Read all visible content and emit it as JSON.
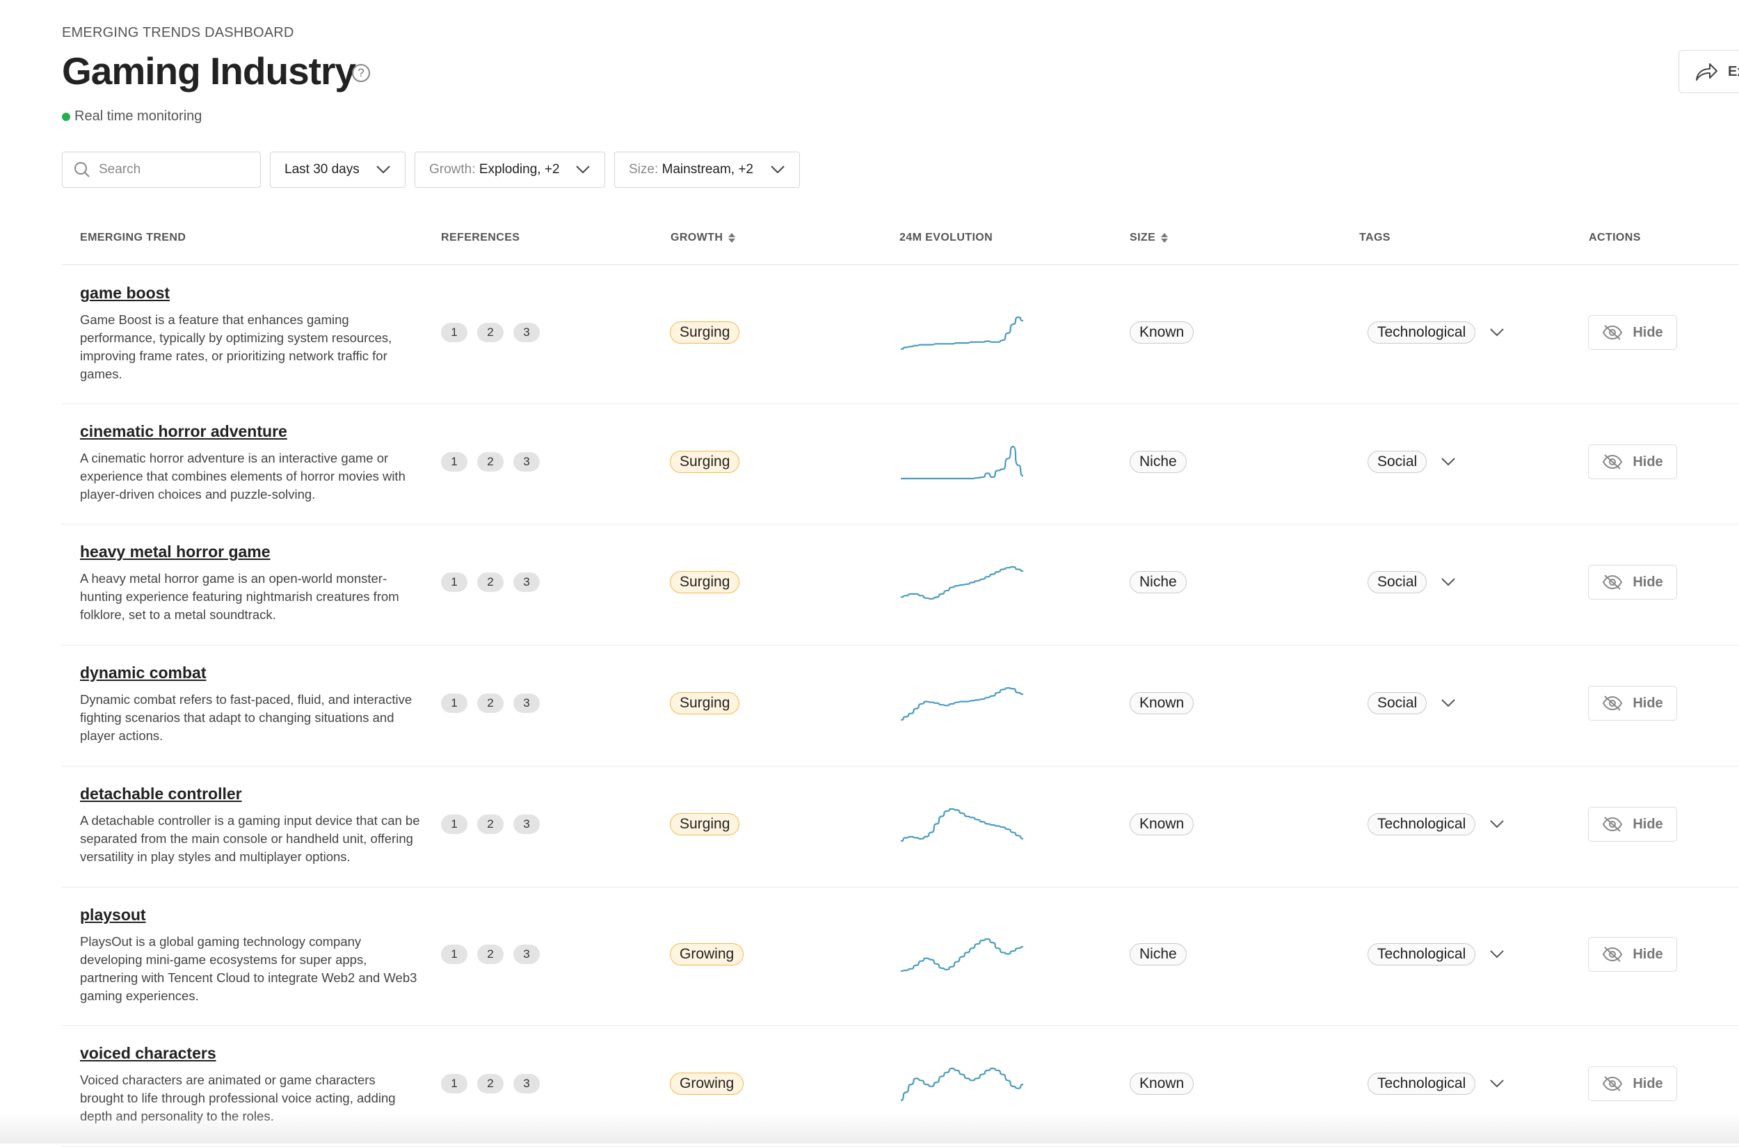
{
  "header": {
    "eyebrow": "EMERGING TRENDS DASHBOARD",
    "title": "Gaming Industry",
    "help_symbol": "?",
    "status": "Real time monitoring",
    "export_label": "Ex"
  },
  "filters": {
    "search_placeholder": "Search",
    "period": "Last 30 days",
    "growth_label": "Growth:",
    "growth_value": "Exploding, +2",
    "size_label": "Size:",
    "size_value": "Mainstream, +2"
  },
  "columns": {
    "trend": "EMERGING TREND",
    "references": "REFERENCES",
    "growth": "GROWTH",
    "evolution": "24M EVOLUTION",
    "size": "SIZE",
    "tags": "TAGS",
    "actions": "ACTIONS"
  },
  "colors": {
    "accent_line": "#4a9cc0",
    "live_dot": "#22b14c",
    "growth_border": "#f3b94a",
    "growth_fill": "#fff4e0"
  },
  "hide_label": "Hide",
  "rows": [
    {
      "name": "game boost",
      "description": "Game Boost is a feature that enhances gaming performance, typically by optimizing system resources, improving frame rates, or prioritizing network traffic for games.",
      "refs": [
        "1",
        "2",
        "3"
      ],
      "growth": "Surging",
      "size": "Known",
      "tag": "Technological",
      "trend": [
        20,
        22,
        23,
        24,
        25,
        25,
        25,
        26,
        26,
        26,
        26,
        27,
        27,
        27,
        28,
        28,
        28,
        29,
        28,
        28,
        30,
        38,
        48,
        56,
        52
      ]
    },
    {
      "name": "cinematic horror adventure",
      "description": "A cinematic horror adventure is an interactive game or experience that combines elements of horror movies with player-driven choices and puzzle-solving.",
      "refs": [
        "1",
        "2",
        "3"
      ],
      "growth": "Surging",
      "size": "Niche",
      "tag": "Social",
      "trend": [
        10,
        10,
        10,
        10,
        10,
        10,
        10,
        10,
        10,
        10,
        10,
        10,
        10,
        10,
        10,
        11,
        12,
        18,
        12,
        22,
        24,
        40,
        58,
        30,
        14
      ]
    },
    {
      "name": "heavy metal horror game",
      "description": "A heavy metal horror game is an open-world monster-hunting experience featuring nightmarish creatures from folklore, set to a metal soundtrack.",
      "refs": [
        "1",
        "2",
        "3"
      ],
      "growth": "Surging",
      "size": "Niche",
      "tag": "Social",
      "trend": [
        18,
        20,
        22,
        22,
        20,
        17,
        16,
        18,
        22,
        26,
        30,
        32,
        33,
        34,
        36,
        38,
        40,
        43,
        46,
        49,
        52,
        54,
        55,
        52,
        50
      ]
    },
    {
      "name": "dynamic combat",
      "description": "Dynamic combat refers to fast-paced, fluid, and interactive fighting scenarios that adapt to changing situations and player actions.",
      "refs": [
        "1",
        "2",
        "3"
      ],
      "growth": "Surging",
      "size": "Known",
      "tag": "Social",
      "trend": [
        12,
        16,
        20,
        26,
        32,
        35,
        34,
        33,
        31,
        30,
        32,
        34,
        35,
        35,
        36,
        37,
        38,
        40,
        42,
        46,
        50,
        52,
        51,
        46,
        44
      ]
    },
    {
      "name": "detachable controller",
      "description": "A detachable controller is a gaming input device that can be separated from the main console or handheld unit, offering versatility in play styles and multiplayer options.",
      "refs": [
        "1",
        "2",
        "3"
      ],
      "growth": "Surging",
      "size": "Known",
      "tag": "Technological",
      "trend": [
        22,
        25,
        26,
        25,
        24,
        26,
        30,
        38,
        45,
        50,
        52,
        51,
        48,
        45,
        44,
        42,
        40,
        38,
        37,
        36,
        35,
        33,
        30,
        27,
        24
      ]
    },
    {
      "name": "playsout",
      "description": "PlaysOut is a global gaming technology company developing mini-game ecosystems for super apps, partnering with Tencent Cloud to integrate Web2 and Web3 gaming experiences.",
      "refs": [
        "1",
        "2",
        "3"
      ],
      "growth": "Growing",
      "size": "Niche",
      "tag": "Technological",
      "trend": [
        12,
        13,
        15,
        20,
        26,
        30,
        28,
        22,
        16,
        14,
        18,
        25,
        32,
        38,
        44,
        50,
        55,
        57,
        52,
        44,
        38,
        36,
        40,
        44,
        46
      ]
    },
    {
      "name": "voiced characters",
      "description": "Voiced characters are animated or game characters brought to life through professional voice acting, adding depth and personality to the roles.",
      "refs": [
        "1",
        "2",
        "3"
      ],
      "growth": "Growing",
      "size": "Known",
      "tag": "Technological",
      "trend": [
        14,
        22,
        30,
        36,
        34,
        30,
        28,
        32,
        38,
        42,
        46,
        44,
        40,
        36,
        34,
        36,
        40,
        44,
        46,
        44,
        40,
        34,
        28,
        26,
        30
      ]
    }
  ]
}
